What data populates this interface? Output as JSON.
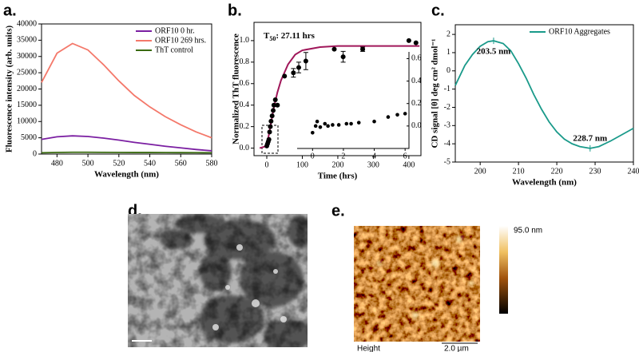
{
  "panel_labels": [
    "a.",
    "b.",
    "c.",
    "d.",
    "e."
  ],
  "chart_data": [
    {
      "type": "line",
      "xlabel": "Wavelength (nm)",
      "ylabel": "Fluorescence intensity (arb. units)",
      "xlim": [
        470,
        580
      ],
      "ylim": [
        0,
        40000
      ],
      "xticks": [
        480,
        500,
        520,
        540,
        560,
        580
      ],
      "yticks": [
        0,
        5000,
        10000,
        15000,
        20000,
        25000,
        30000,
        35000,
        40000
      ],
      "legend": "upper right",
      "x": [
        470,
        480,
        490,
        500,
        510,
        520,
        530,
        540,
        550,
        560,
        570,
        580
      ],
      "series": [
        {
          "name": "ORF10 0 hr.",
          "color": "#7b1fa2",
          "values": [
            4500,
            5300,
            5600,
            5400,
            4900,
            4300,
            3600,
            3000,
            2400,
            1900,
            1400,
            1000
          ]
        },
        {
          "name": "ORF10 269 hrs.",
          "color": "#f4786a",
          "values": [
            22000,
            31000,
            34000,
            32000,
            27500,
            22500,
            18000,
            14500,
            11500,
            9000,
            6800,
            5000
          ]
        },
        {
          "name": "ThT control",
          "color": "#3a6b10",
          "values": [
            400,
            500,
            550,
            550,
            520,
            500,
            480,
            470,
            460,
            450,
            430,
            400
          ]
        }
      ]
    },
    {
      "type": "scatter",
      "xlabel": "Time (hrs)",
      "ylabel": "Normalized ThT fluorescence",
      "annotation": {
        "main": "T",
        "sub": "50",
        "rest": ": 27.11 hrs"
      },
      "xlim": [
        -36,
        434
      ],
      "ylim": [
        -0.07,
        1.17
      ],
      "xticks": [
        0,
        100,
        200,
        300,
        400
      ],
      "yticks": [
        {
          "value": 0,
          "label": "0.0"
        },
        {
          "value": 0.2,
          "label": "0.2"
        },
        {
          "value": 0.4,
          "label": "0.4"
        },
        {
          "value": 0.6,
          "label": "0.6"
        },
        {
          "value": 0.8,
          "label": "0.8"
        },
        {
          "value": 1,
          "label": "1.0"
        }
      ],
      "color": "#000000",
      "x": [
        0,
        2,
        4,
        6,
        8,
        10,
        12,
        15,
        18,
        20,
        24,
        30,
        50,
        75,
        90,
        110,
        190,
        215,
        270,
        400,
        420
      ],
      "values": [
        0.02,
        0.04,
        0.06,
        0.08,
        0.15,
        0.2,
        0.25,
        0.3,
        0.35,
        0.4,
        0.45,
        0.4,
        0.67,
        0.7,
        0.75,
        0.81,
        0.92,
        0.85,
        0.92,
        1.0,
        0.98
      ],
      "errors": [
        null,
        null,
        null,
        null,
        null,
        null,
        null,
        null,
        null,
        null,
        null,
        null,
        null,
        0.04,
        0.05,
        0.08,
        null,
        0.05,
        0.02,
        null,
        null
      ],
      "fit": {
        "color": "#a0175a",
        "x": [
          -20,
          0,
          10,
          20,
          30,
          40,
          60,
          80,
          100,
          150,
          200,
          300,
          430
        ],
        "values": [
          0,
          0.02,
          0.2,
          0.38,
          0.52,
          0.63,
          0.78,
          0.87,
          0.91,
          0.94,
          0.95,
          0.95,
          0.95
        ]
      },
      "inset": {
        "xlim": [
          -1,
          6.25
        ],
        "ylim": [
          -0.2,
          0.66
        ],
        "xticks": [
          0,
          2,
          4,
          6
        ],
        "yticks": [
          {
            "value": 0,
            "label": "0.0"
          },
          {
            "value": 0.2,
            "label": "0.2"
          },
          {
            "value": 0.4,
            "label": "0.4"
          },
          {
            "value": 0.6,
            "label": "0.6"
          }
        ],
        "x": [
          0,
          0.2,
          0.3,
          0.5,
          0.8,
          1.0,
          1.3,
          1.7,
          2.2,
          2.5,
          3,
          4,
          4.9,
          5.5,
          6
        ],
        "values": [
          -0.06,
          0.0,
          0.04,
          -0.01,
          0.02,
          0.0,
          0.01,
          0.01,
          0.02,
          0.02,
          0.03,
          0.04,
          0.08,
          0.1,
          0.11
        ]
      }
    },
    {
      "type": "line",
      "xlabel": "Wavelength (nm)",
      "ylabel": "CD signal [θ] deg cm² dmol⁻¹",
      "xlim": [
        193.5,
        240
      ],
      "ylim": [
        -5,
        2.53
      ],
      "xticks": [
        200,
        210,
        220,
        230,
        240
      ],
      "yticks": [
        -5,
        -4,
        -3,
        -2,
        -1,
        0,
        1,
        2
      ],
      "legend": "upper right",
      "x": [
        193.5,
        196,
        198,
        200,
        202,
        203.5,
        206,
        208,
        210,
        212,
        214,
        216,
        218,
        220,
        222,
        224,
        226,
        228.7,
        231,
        234,
        237,
        240
      ],
      "series": [
        {
          "name": "ORF10 Aggregates",
          "color": "#1a9a8a",
          "values": [
            -0.8,
            0.3,
            0.9,
            1.35,
            1.6,
            1.65,
            1.5,
            1.1,
            0.4,
            -0.4,
            -1.3,
            -2.1,
            -2.8,
            -3.35,
            -3.75,
            -4.0,
            -4.15,
            -4.25,
            -4.15,
            -3.85,
            -3.5,
            -3.15
          ]
        }
      ],
      "annotations": [
        {
          "text": "203.5 nm",
          "x": 203.5,
          "y": 1.65
        },
        {
          "text": "228.7 nm",
          "x": 228.7,
          "y": -4.25
        }
      ]
    }
  ],
  "images": {
    "e": {
      "colorbar_label": "95.0 nm",
      "caption": "Height",
      "scale_bar": "2.0 µm"
    }
  }
}
